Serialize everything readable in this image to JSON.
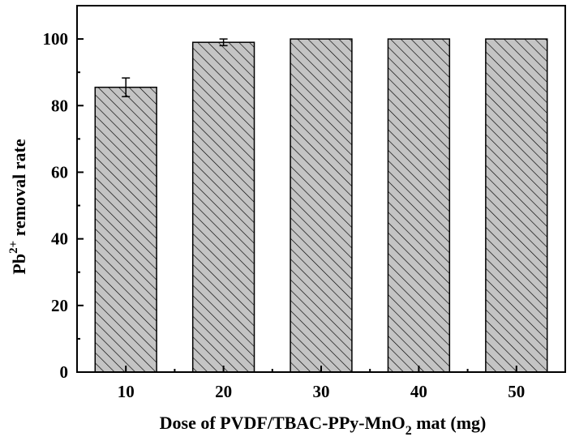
{
  "chart_data": {
    "type": "bar",
    "categories": [
      "10",
      "20",
      "30",
      "40",
      "50"
    ],
    "values": [
      85.5,
      99.0,
      100,
      100,
      100
    ],
    "error": [
      2.8,
      1.0,
      0,
      0,
      0
    ],
    "xlabel": {
      "prefix": "Dose of PVDF/TBAC-PPy-MnO",
      "subscript": "2",
      "suffix": " mat (mg)"
    },
    "ylabel": {
      "base": "Pb",
      "superscript": "2+",
      "suffix": " removal rate"
    },
    "ylim": [
      0,
      110
    ],
    "yticks": [
      "0",
      "20",
      "40",
      "60",
      "80",
      "100"
    ],
    "bar_fill": "#c4c4c4",
    "hatch": "diagonal-backslash",
    "grid": false
  }
}
